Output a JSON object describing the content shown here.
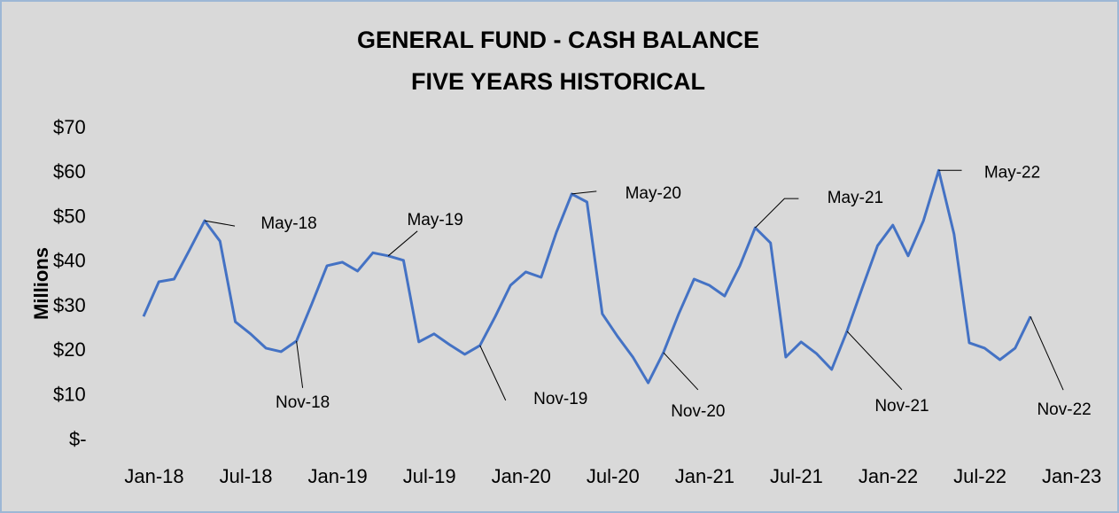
{
  "chart_data": {
    "type": "line",
    "title": "GENERAL FUND - CASH BALANCE",
    "subtitle": "FIVE YEARS HISTORICAL",
    "y_label": "Millions",
    "x": [
      "Jan-18",
      "Feb-18",
      "Mar-18",
      "Apr-18",
      "May-18",
      "Jun-18",
      "Jul-18",
      "Aug-18",
      "Sep-18",
      "Oct-18",
      "Nov-18",
      "Dec-18",
      "Jan-19",
      "Feb-19",
      "Mar-19",
      "Apr-19",
      "May-19",
      "Jun-19",
      "Jul-19",
      "Aug-19",
      "Sep-19",
      "Oct-19",
      "Nov-19",
      "Dec-19",
      "Jan-20",
      "Feb-20",
      "Mar-20",
      "Apr-20",
      "May-20",
      "Jun-20",
      "Jul-20",
      "Aug-20",
      "Sep-20",
      "Oct-20",
      "Nov-20",
      "Dec-20",
      "Jan-21",
      "Feb-21",
      "Mar-21",
      "Apr-21",
      "May-21",
      "Jun-21",
      "Jul-21",
      "Aug-21",
      "Sep-21",
      "Oct-21",
      "Nov-21",
      "Dec-21",
      "Jan-22",
      "Feb-22",
      "Mar-22",
      "Apr-22",
      "May-22",
      "Jun-22",
      "Jul-22",
      "Aug-22",
      "Sep-22",
      "Oct-22",
      "Nov-22"
    ],
    "series": [
      {
        "name": "Cash Balance",
        "color": "#4472c4",
        "values": [
          27.8,
          35.6,
          36.2,
          42.7,
          49.3,
          44.7,
          26.6,
          23.9,
          20.7,
          19.9,
          22.3,
          30.6,
          39.2,
          40.0,
          38.0,
          42.1,
          41.4,
          40.4,
          22.1,
          23.9,
          21.5,
          19.3,
          21.3,
          27.8,
          34.8,
          37.8,
          36.6,
          46.7,
          55.3,
          53.5,
          28.4,
          23.3,
          18.7,
          12.9,
          19.7,
          28.4,
          36.2,
          34.8,
          32.4,
          39.2,
          47.7,
          44.3,
          18.7,
          22.1,
          19.5,
          15.9,
          24.5,
          34.2,
          43.7,
          48.3,
          41.4,
          49.3,
          60.6,
          46.3,
          21.9,
          20.7,
          18.1,
          20.7,
          27.8
        ]
      }
    ],
    "xticks": [
      "Jan-18",
      "Jul-18",
      "Jan-19",
      "Jul-19",
      "Jan-20",
      "Jul-20",
      "Jan-21",
      "Jul-21",
      "Jan-22",
      "Jul-22",
      "Jan-23"
    ],
    "ylim": [
      0,
      70
    ],
    "yticks": [
      {
        "value": 0,
        "label": "$-"
      },
      {
        "value": 10,
        "label": "$10"
      },
      {
        "value": 20,
        "label": "$20"
      },
      {
        "value": 30,
        "label": "$30"
      },
      {
        "value": 40,
        "label": "$40"
      },
      {
        "value": 50,
        "label": "$50"
      },
      {
        "value": 60,
        "label": "$60"
      },
      {
        "value": 70,
        "label": "$70"
      }
    ],
    "grid": false,
    "annotations": [
      "May-18",
      "May-19",
      "May-20",
      "May-21",
      "May-22",
      "Nov-18",
      "Nov-19",
      "Nov-20",
      "Nov-21",
      "Nov-22"
    ]
  }
}
